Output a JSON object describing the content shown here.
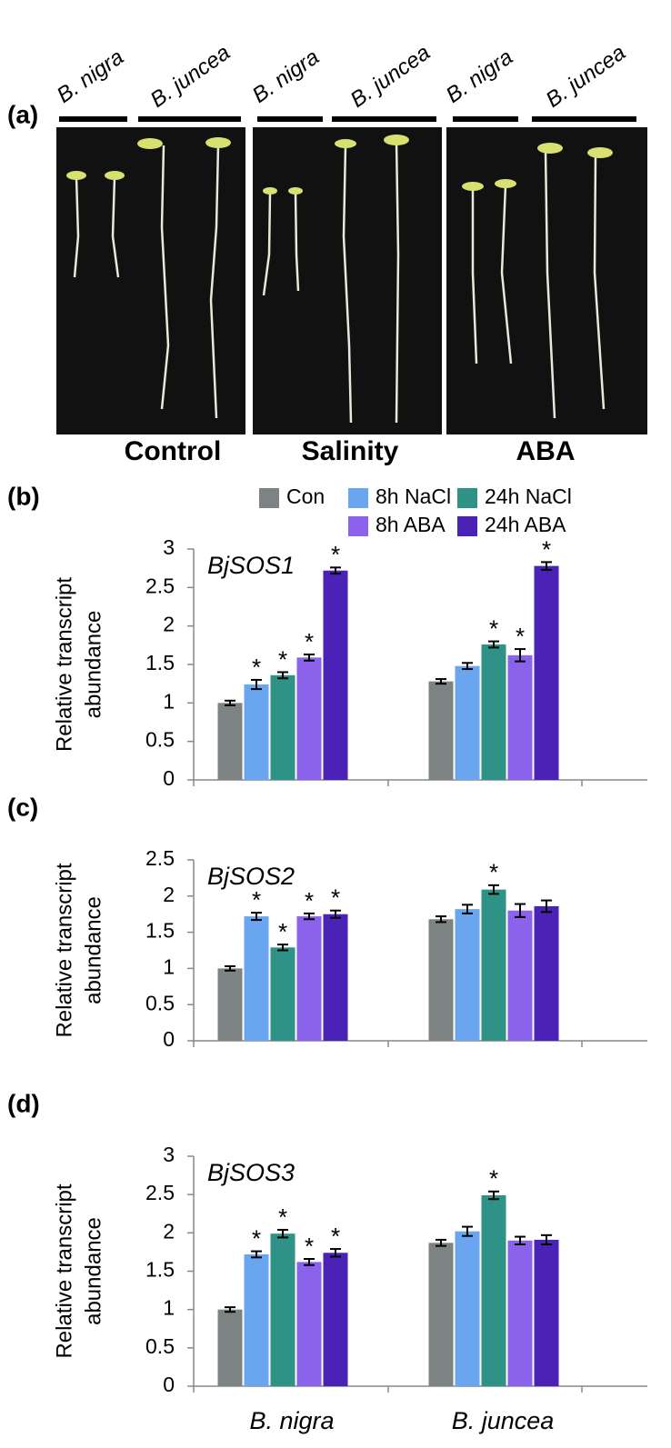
{
  "photo_panel": {
    "label": "(a)",
    "species_labels": [
      "B. nigra",
      "B. juncea",
      "B. nigra",
      "B. juncea",
      "B. nigra",
      "B. juncea"
    ],
    "conditions": [
      "Control",
      "Salinity",
      "ABA"
    ]
  },
  "chart_data": [
    {
      "type": "bar",
      "panel_label": "(b)",
      "title": "BjSOS1",
      "y_label": [
        "Relative transcript",
        "abundance"
      ],
      "categories": [
        null,
        null
      ],
      "ylim": [
        0,
        3
      ],
      "yticks": [
        0,
        0.5,
        1,
        1.5,
        2,
        2.5,
        3
      ],
      "legend": true,
      "series": [
        {
          "name": "Con",
          "color": "#7d8382",
          "values": [
            1.0,
            1.28
          ],
          "errors": [
            0.03,
            0.03
          ]
        },
        {
          "name": "8h NaCl",
          "color": "#6aa6ef",
          "values": [
            1.24,
            1.48
          ],
          "errors": [
            0.06,
            0.04
          ]
        },
        {
          "name": "24h NaCl",
          "color": "#2e9286",
          "values": [
            1.36,
            1.76
          ],
          "errors": [
            0.04,
            0.04
          ]
        },
        {
          "name": "8h ABA",
          "color": "#8a62ec",
          "values": [
            1.59,
            1.62
          ],
          "errors": [
            0.04,
            0.08
          ]
        },
        {
          "name": "24h ABA",
          "color": "#4a22b6",
          "values": [
            2.72,
            2.78
          ],
          "errors": [
            0.04,
            0.05
          ]
        }
      ],
      "significance_marks": [
        {
          "series": 1,
          "category": 0,
          "label": "*"
        },
        {
          "series": 2,
          "category": 0,
          "label": "*"
        },
        {
          "series": 3,
          "category": 0,
          "label": "*"
        },
        {
          "series": 4,
          "category": 0,
          "label": "*"
        },
        {
          "series": 2,
          "category": 1,
          "label": "*"
        },
        {
          "series": 3,
          "category": 1,
          "label": "*"
        },
        {
          "series": 4,
          "category": 1,
          "label": "*"
        }
      ]
    },
    {
      "type": "bar",
      "panel_label": "(c)",
      "title": "BjSOS2",
      "y_label": [
        "Relative transcript",
        "abundance"
      ],
      "categories": [
        null,
        null
      ],
      "ylim": [
        0,
        2.5
      ],
      "yticks": [
        0,
        0.5,
        1,
        1.5,
        2,
        2.5
      ],
      "legend": false,
      "series": [
        {
          "color": "#7d8382",
          "values": [
            1.0,
            1.68
          ],
          "errors": [
            0.03,
            0.04
          ]
        },
        {
          "color": "#6aa6ef",
          "values": [
            1.72,
            1.82
          ],
          "errors": [
            0.05,
            0.06
          ]
        },
        {
          "color": "#2e9286",
          "values": [
            1.29,
            2.09
          ],
          "errors": [
            0.04,
            0.06
          ]
        },
        {
          "color": "#8a62ec",
          "values": [
            1.72,
            1.8
          ],
          "errors": [
            0.04,
            0.09
          ]
        },
        {
          "color": "#4a22b6",
          "values": [
            1.75,
            1.86
          ],
          "errors": [
            0.05,
            0.08
          ]
        }
      ],
      "significance_marks": [
        {
          "series": 1,
          "category": 0,
          "label": "*"
        },
        {
          "series": 2,
          "category": 0,
          "label": "*"
        },
        {
          "series": 3,
          "category": 0,
          "label": "*"
        },
        {
          "series": 4,
          "category": 0,
          "label": "*"
        },
        {
          "series": 2,
          "category": 1,
          "label": "*"
        }
      ]
    },
    {
      "type": "bar",
      "panel_label": "(d)",
      "title": "BjSOS3",
      "y_label": [
        "Relative transcript",
        "abundance"
      ],
      "categories": [
        "B. nigra",
        "B. juncea"
      ],
      "ylim": [
        0,
        3
      ],
      "yticks": [
        0,
        0.5,
        1,
        1.5,
        2,
        2.5,
        3
      ],
      "legend": false,
      "series": [
        {
          "color": "#7d8382",
          "values": [
            1.0,
            1.87
          ],
          "errors": [
            0.03,
            0.04
          ]
        },
        {
          "color": "#6aa6ef",
          "values": [
            1.72,
            2.02
          ],
          "errors": [
            0.04,
            0.06
          ]
        },
        {
          "color": "#2e9286",
          "values": [
            1.99,
            2.49
          ],
          "errors": [
            0.05,
            0.05
          ]
        },
        {
          "color": "#8a62ec",
          "values": [
            1.62,
            1.9
          ],
          "errors": [
            0.04,
            0.05
          ]
        },
        {
          "color": "#4a22b6",
          "values": [
            1.74,
            1.91
          ],
          "errors": [
            0.05,
            0.06
          ]
        }
      ],
      "significance_marks": [
        {
          "series": 1,
          "category": 0,
          "label": "*"
        },
        {
          "series": 2,
          "category": 0,
          "label": "*"
        },
        {
          "series": 3,
          "category": 0,
          "label": "*"
        },
        {
          "series": 4,
          "category": 0,
          "label": "*"
        },
        {
          "series": 2,
          "category": 1,
          "label": "*"
        }
      ]
    }
  ]
}
